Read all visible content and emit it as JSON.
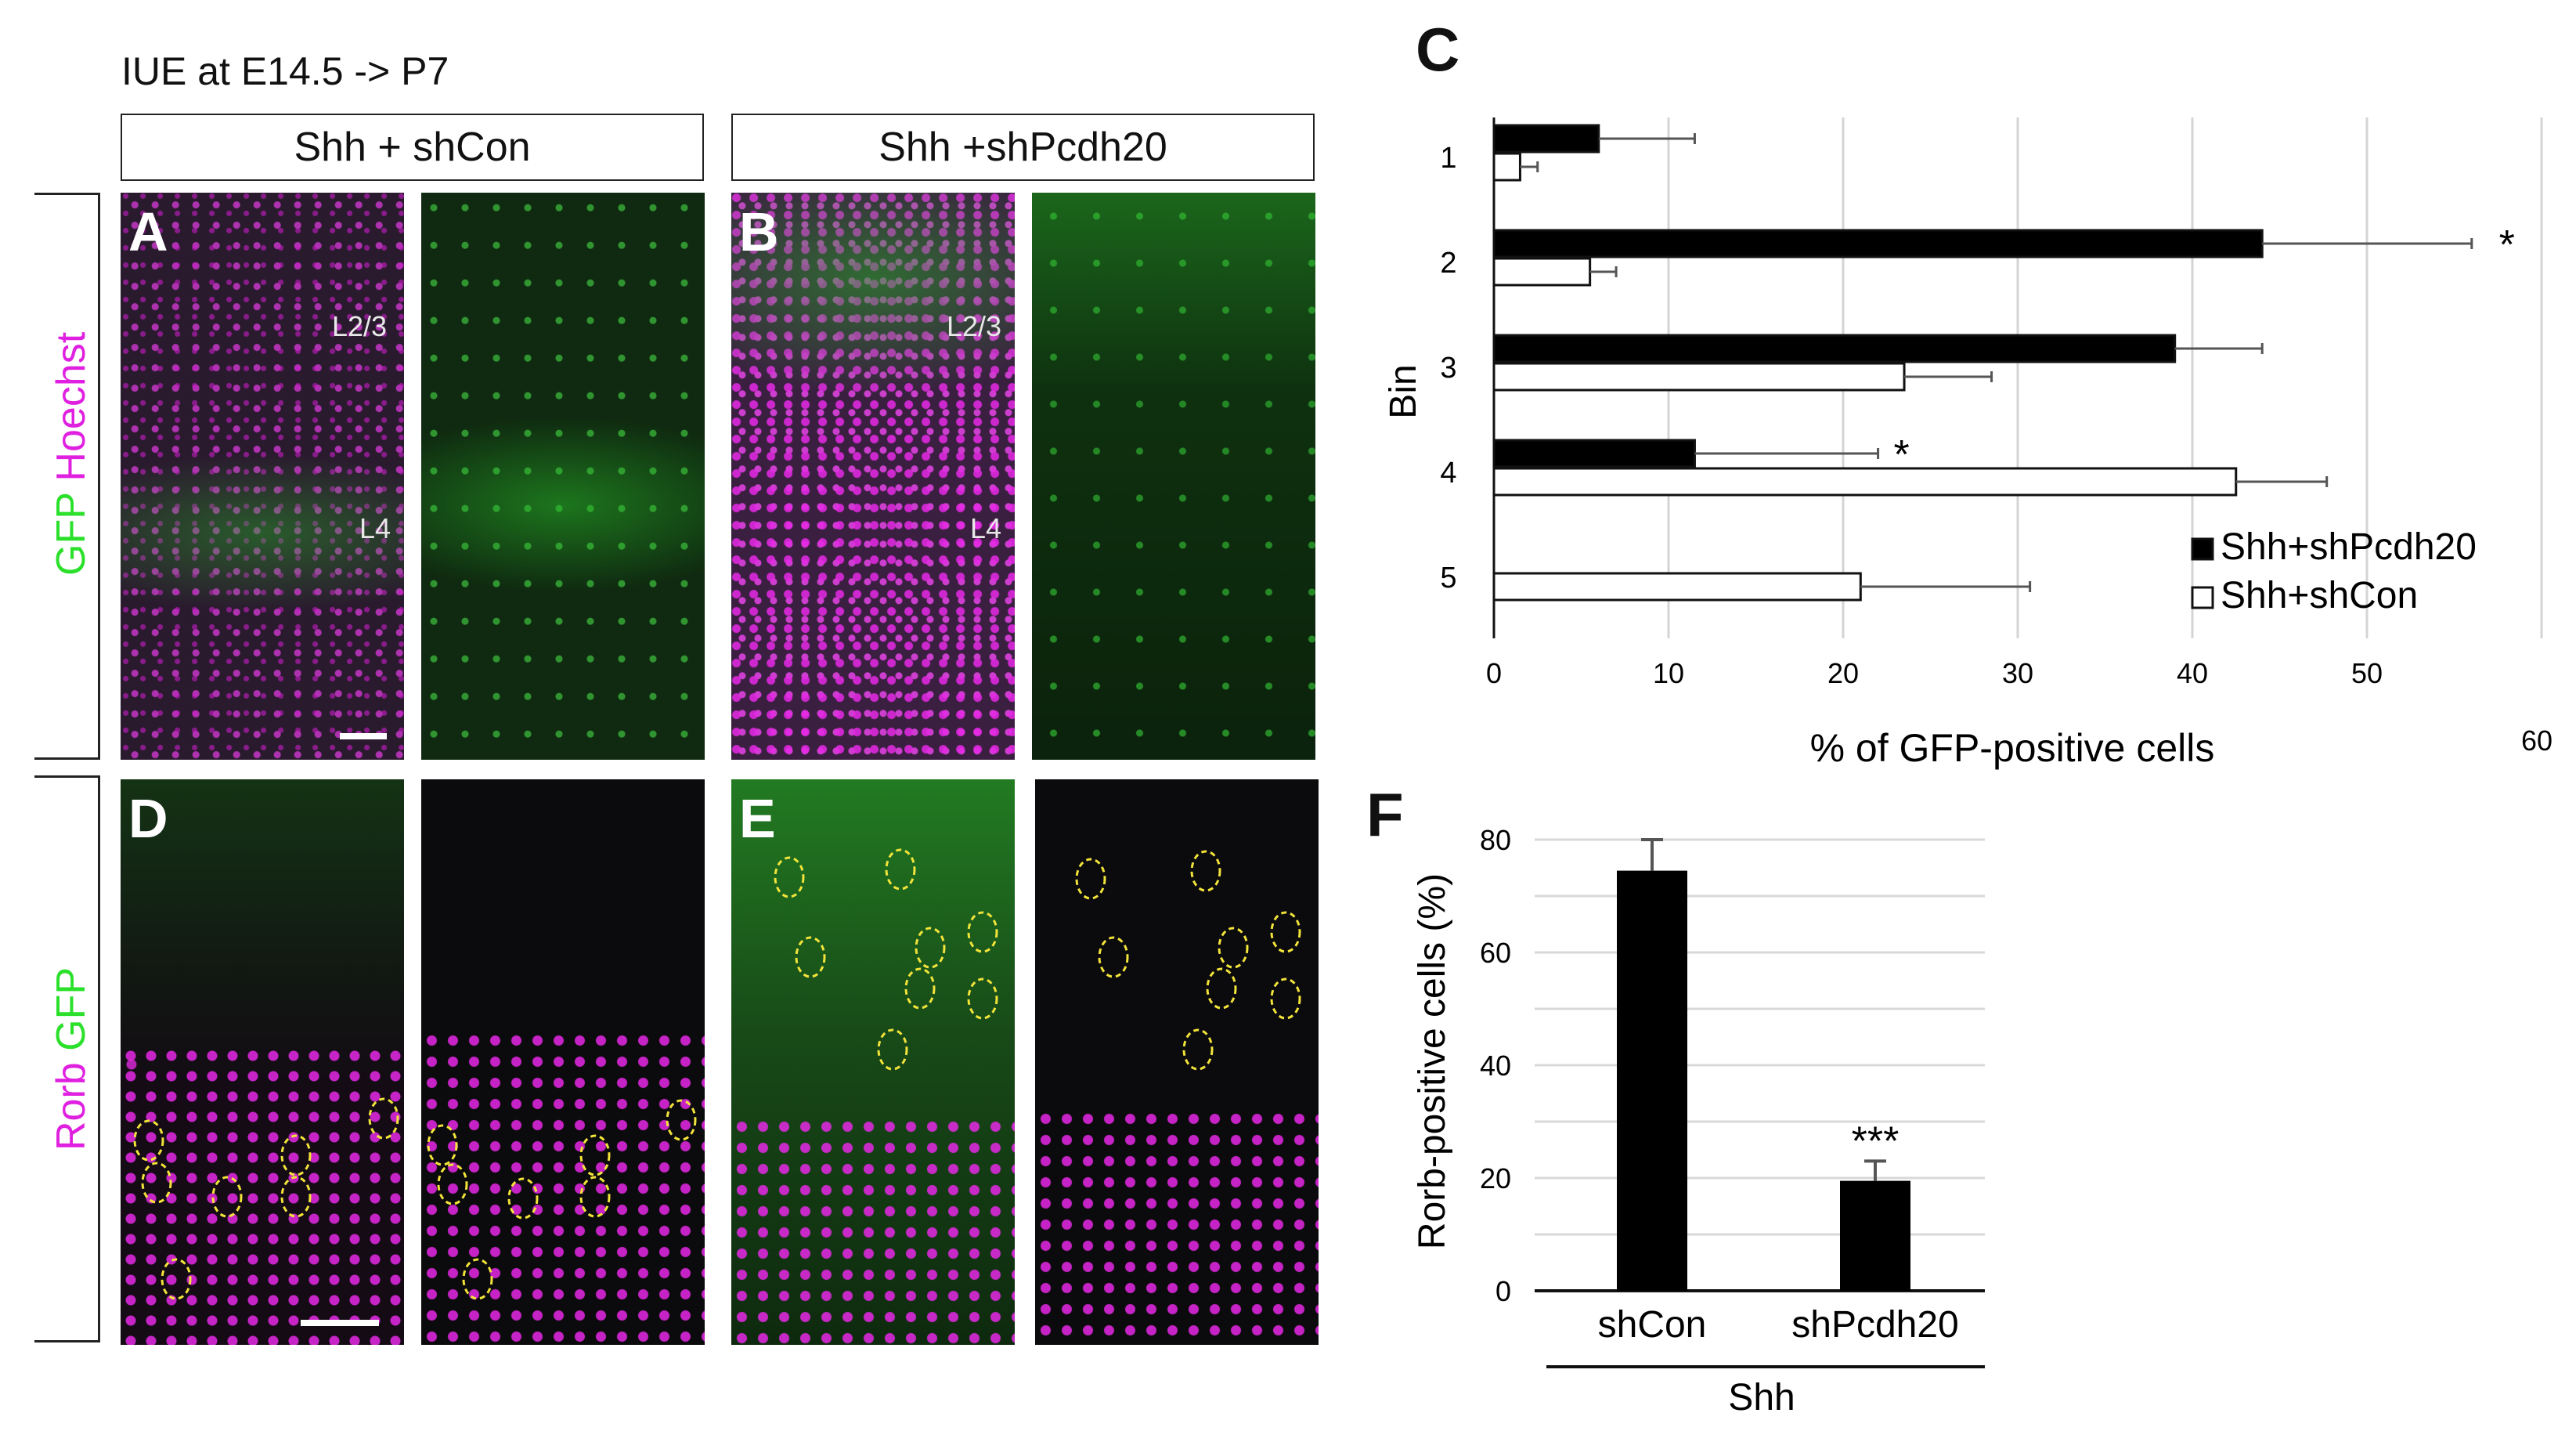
{
  "figure": {
    "header": "IUE at E14.5 -> P7",
    "conditions": [
      "Shh + shCon",
      "Shh +shPcdh20"
    ],
    "row1_label": {
      "part1": "GFP",
      "part2": "Hoechst"
    },
    "row2_label": {
      "part1": "Rorb",
      "part2": "GFP"
    },
    "panels": {
      "A": "A",
      "B": "B",
      "D": "D",
      "E": "E",
      "C": "C",
      "F": "F"
    },
    "layer_labels": {
      "l23": "L2/3",
      "l4": "L4"
    },
    "colors": {
      "gfp": "#2be02b",
      "magenta": "#e020e0",
      "circle": "#f2e43a"
    }
  },
  "chart_data": [
    {
      "panel": "C",
      "type": "bar",
      "orientation": "horizontal",
      "categories": [
        "1",
        "2",
        "3",
        "4",
        "5"
      ],
      "ylabel": "Bin",
      "xlabel": "% of GFP-positive cells",
      "xlim": [
        0,
        60
      ],
      "xticks": [
        "0",
        "10",
        "20",
        "30",
        "40",
        "50"
      ],
      "extra_tick": "60",
      "legend_position": "bottom-right",
      "series": [
        {
          "name": "Shh+shPcdh20",
          "color": "#000000",
          "values": [
            6,
            44,
            39,
            11.5,
            0
          ],
          "errors": [
            5.5,
            12,
            5,
            10.5,
            0
          ]
        },
        {
          "name": "Shh+shCon",
          "color": "#ffffff",
          "values": [
            1.5,
            5.5,
            23.5,
            42.5,
            21
          ],
          "errors": [
            1,
            1.5,
            5,
            5.2,
            9.7
          ]
        }
      ],
      "significance": [
        {
          "category": "2",
          "mark": "*"
        },
        {
          "category": "4",
          "mark": "*"
        }
      ],
      "grid": true
    },
    {
      "panel": "F",
      "type": "bar",
      "categories": [
        "shCon",
        "shPcdh20"
      ],
      "group_label": "Shh",
      "ylabel": "Rorb-positive cells (%)",
      "ylim": [
        0,
        80
      ],
      "yticks": [
        "0",
        "20",
        "40",
        "60",
        "80"
      ],
      "values": [
        74.5,
        19.5
      ],
      "errors": [
        5.5,
        3.5
      ],
      "bar_color": "#000000",
      "significance": [
        {
          "category": "shPcdh20",
          "mark": "***"
        }
      ],
      "grid": true
    }
  ]
}
